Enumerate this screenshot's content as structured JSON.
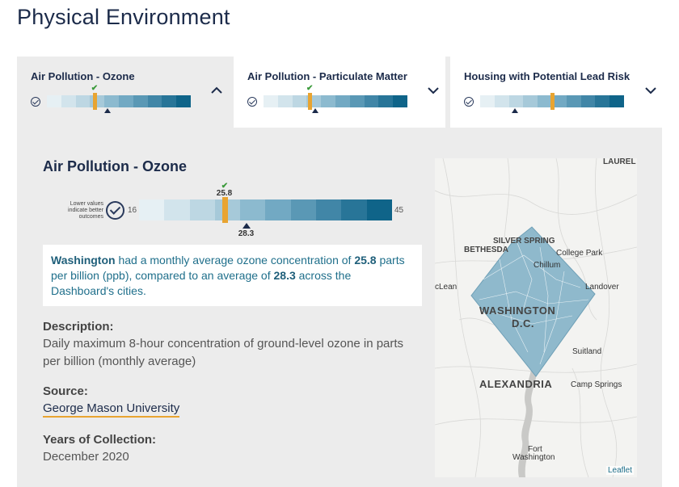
{
  "section": {
    "title": "Physical Environment"
  },
  "tabs": [
    {
      "title": "Air Pollution - Ozone",
      "chevron": "chevron-up-icon",
      "marker_fraction": 0.33,
      "avg_fraction": 0.42
    },
    {
      "title": "Air Pollution - Particulate Matter",
      "chevron": "chevron-down-icon",
      "marker_fraction": 0.32,
      "avg_fraction": 0.36
    },
    {
      "title": "Housing with Potential Lead Risk",
      "chevron": "chevron-down-icon",
      "marker_fraction": 0.5,
      "avg_fraction": 0.24
    }
  ],
  "detail": {
    "title": "Air Pollution - Ozone",
    "lower_note": "Lower values indicate better outcomes",
    "scale_min": "16",
    "scale_max": "45",
    "value": "25.8",
    "average": "28.3",
    "summary": {
      "city": "Washington",
      "part1": " had a monthly average ozone concentration of ",
      "value": "25.8",
      "part2": " parts per billion (ppb), compared to an average of ",
      "average": "28.3",
      "part3": " across the Dashboard's cities."
    },
    "description_label": "Description:",
    "description": "Daily maximum 8-hour concentration of ground-level ozone in parts per billion (monthly average)",
    "source_label": "Source:",
    "source": "George Mason University",
    "years_label": "Years of Collection:",
    "years": "December 2020"
  },
  "map": {
    "labels": {
      "laurel": "LAUREL",
      "silver_spring": "SILVER SPRING",
      "bethesda": "BETHESDA",
      "college_park": "College Park",
      "chillum": "Chillum",
      "mclean": "cLean",
      "landover": "Landover",
      "washington": "WASHINGTON",
      "dc": "D.C.",
      "suitland": "Suitland",
      "alexandria": "ALEXANDRIA",
      "camp_springs": "Camp Springs",
      "fort": "Fort",
      "fort_washington": "Washington"
    },
    "attribution": "Leaflet"
  },
  "colors": {
    "scale": [
      "#e6f0f4",
      "#d2e4ec",
      "#bdd7e3",
      "#a6c9d9",
      "#8cbacf",
      "#72a9c3",
      "#5a98b5",
      "#4186a7",
      "#287598",
      "#0f6489"
    ],
    "marker": "#e8a431",
    "panel": "#ececec"
  }
}
